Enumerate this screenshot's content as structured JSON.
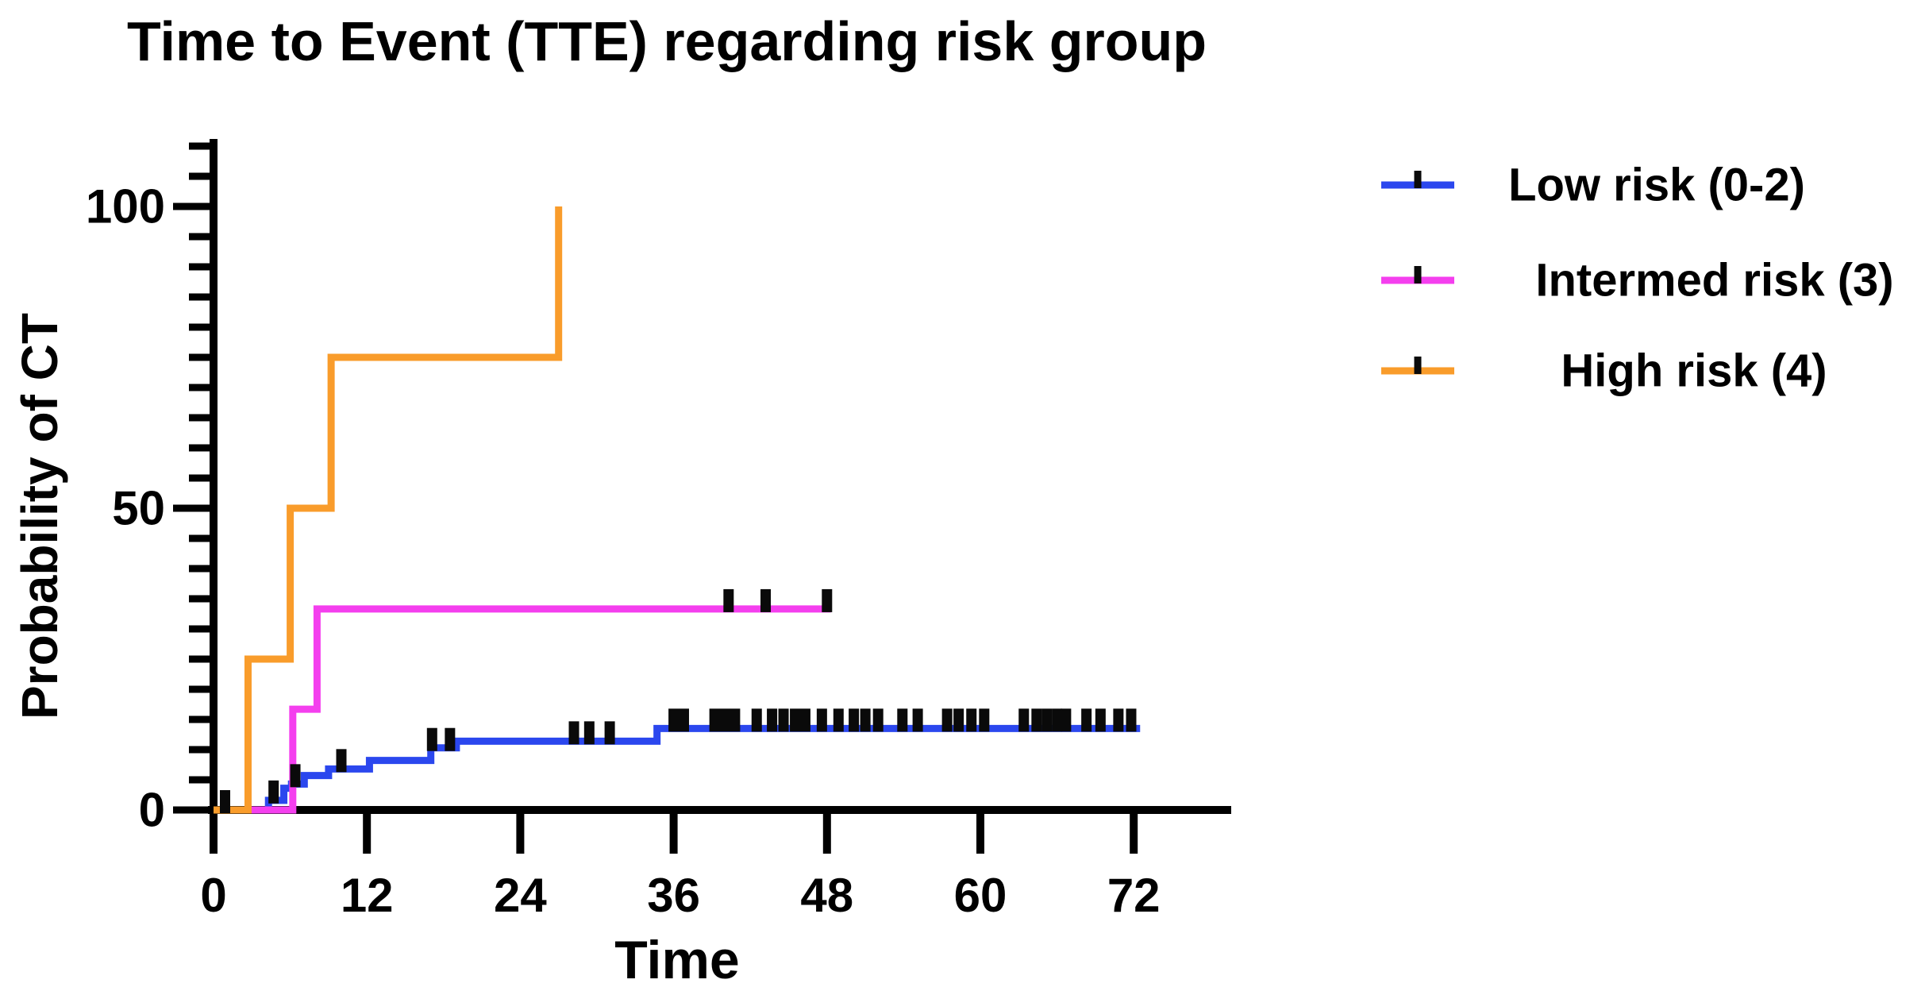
{
  "title": "Time to Event (TTE) regarding risk group",
  "chart_data": {
    "type": "line",
    "subtype": "kaplan-meier-step-curves",
    "title": "Time to Event (TTE) regarding risk group",
    "xlabel": "Time",
    "ylabel": "Probability of CT",
    "xlim": [
      0,
      79
    ],
    "ylim": [
      0,
      110
    ],
    "xticks": [
      0,
      12,
      24,
      36,
      48,
      60,
      72
    ],
    "yticks_major": [
      0,
      50,
      100
    ],
    "ytick_minor_step": 5,
    "grid": false,
    "legend_position": "right",
    "censor_marker": "vertical-tick",
    "censor_color": "#0a0a0a",
    "series": [
      {
        "name": "Low risk (0-2)",
        "color": "#2B47EE",
        "steps": [
          [
            0,
            0
          ],
          [
            4.3,
            1.6
          ],
          [
            5.5,
            3.6
          ],
          [
            6.1,
            4.3
          ],
          [
            7.1,
            5.7
          ],
          [
            9.0,
            6.8
          ],
          [
            12.2,
            8.2
          ],
          [
            17.0,
            10.3
          ],
          [
            19.0,
            11.4
          ],
          [
            34.7,
            13.5
          ]
        ],
        "end_time": 72.5,
        "censor_times": [
          0.9,
          4.7,
          6.4,
          10.0,
          17.1,
          18.5,
          28.2,
          29.4,
          31.0,
          36.0,
          36.8,
          39.2,
          40.0,
          40.8,
          42.5,
          43.7,
          44.6,
          45.5,
          46.3,
          47.6,
          48.9,
          50.1,
          51.0,
          52.0,
          53.9,
          55.1,
          57.4,
          58.3,
          59.3,
          60.3,
          63.4,
          64.4,
          65.2,
          66.0,
          66.7,
          68.3,
          69.4,
          70.8,
          71.8
        ]
      },
      {
        "name": "Intermed risk (3)",
        "color": "#F43FEE",
        "steps": [
          [
            0,
            0
          ],
          [
            6.2,
            16.7
          ],
          [
            8.1,
            33.3
          ]
        ],
        "end_time": 48.3,
        "censor_times": [
          40.3,
          43.2,
          48.0
        ]
      },
      {
        "name": "High risk (4)",
        "color": "#F99C2B",
        "steps": [
          [
            0,
            0
          ],
          [
            2.7,
            25
          ],
          [
            6.0,
            50
          ],
          [
            9.2,
            75
          ],
          [
            27.0,
            100
          ]
        ],
        "end_time": 27.0,
        "censor_times": []
      }
    ]
  }
}
